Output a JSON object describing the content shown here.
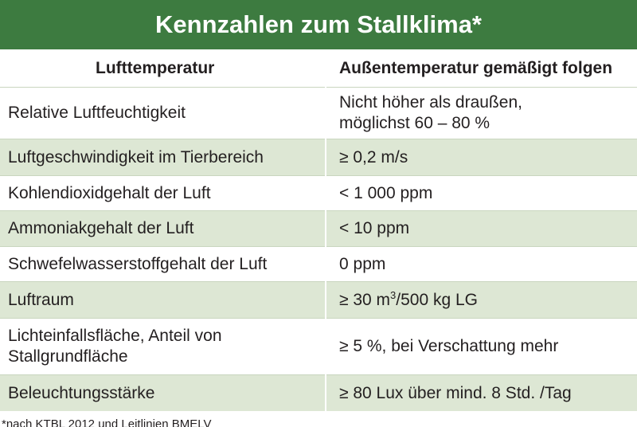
{
  "title": "Kennzahlen zum Stallklima*",
  "table": {
    "header": [
      "Lufttemperatur",
      "Außentemperatur gemäßigt folgen"
    ],
    "rows": [
      [
        [
          "Relative Luftfeuchtigkeit"
        ],
        [
          "Nicht höher als draußen,",
          "möglichst 60 – 80 %"
        ]
      ],
      [
        [
          "Luftgeschwindigkeit im Tierbereich"
        ],
        [
          "≥ 0,2 m/s"
        ]
      ],
      [
        [
          "Kohlendioxidgehalt der Luft"
        ],
        [
          "< 1 000 ppm"
        ]
      ],
      [
        [
          "Ammoniakgehalt der Luft"
        ],
        [
          "< 10 ppm"
        ]
      ],
      [
        [
          "Schwefelwasserstoffgehalt der Luft"
        ],
        [
          "0 ppm"
        ]
      ],
      [
        [
          "Luftraum"
        ],
        [
          {
            "text": "≥ 30 m",
            "sup": "3",
            "after": "/500 kg LG"
          }
        ]
      ],
      [
        [
          "Lichteinfallsfläche, Anteil von",
          "Stallgrundfläche"
        ],
        [
          "≥ 5 %, bei Verschattung mehr"
        ]
      ],
      [
        [
          "Beleuchtungsstärke"
        ],
        [
          "≥ 80 Lux über mind. 8 Std. /Tag"
        ]
      ]
    ]
  },
  "footnote": "*nach KTBL 2012 und Leitlinien BMELV"
}
